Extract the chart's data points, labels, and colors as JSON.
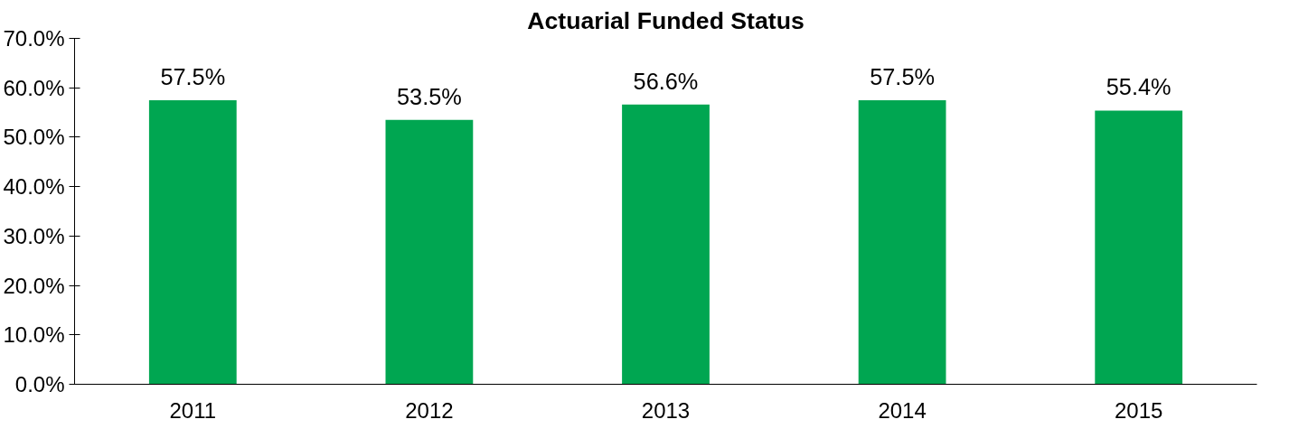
{
  "chart_data": {
    "type": "bar",
    "title": "Actuarial Funded Status",
    "categories": [
      "2011",
      "2012",
      "2013",
      "2014",
      "2015"
    ],
    "values": [
      57.5,
      53.5,
      56.6,
      57.5,
      55.4
    ],
    "color": "#00a651",
    "value_labels": [
      "57.5%",
      "53.5%",
      "56.6%",
      "57.5%",
      "55.4%"
    ],
    "ylim": [
      0,
      70
    ],
    "yticks": [
      {
        "value": 0,
        "label": "0.0%"
      },
      {
        "value": 10,
        "label": "10.0%"
      },
      {
        "value": 20,
        "label": "20.0%"
      },
      {
        "value": 30,
        "label": "30.0%"
      },
      {
        "value": 40,
        "label": "40.0%"
      },
      {
        "value": 50,
        "label": "50.0%"
      },
      {
        "value": 60,
        "label": "60.0%"
      },
      {
        "value": 70,
        "label": "70.0%"
      }
    ],
    "grid": false
  }
}
